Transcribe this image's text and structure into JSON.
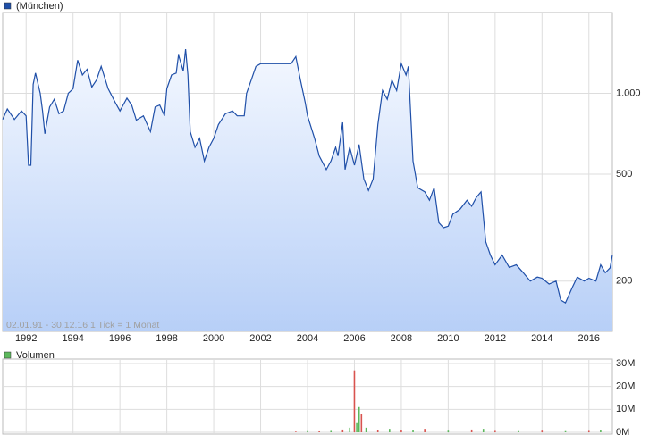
{
  "chart_data": [
    {
      "type": "area",
      "log_scale": true,
      "grid": true,
      "footnote": "02.01.91 - 30.12.16   1 Tick = 1 Monat",
      "series": [
        {
          "name": "(München)",
          "color": "#1f4fa8",
          "x": [
            1991.0,
            1991.2,
            1991.5,
            1991.8,
            1992.0,
            1992.1,
            1992.2,
            1992.3,
            1992.4,
            1992.6,
            1992.7,
            1992.8,
            1993.0,
            1993.2,
            1993.4,
            1993.6,
            1993.8,
            1994.0,
            1994.2,
            1994.4,
            1994.6,
            1994.8,
            1995.0,
            1995.2,
            1995.5,
            1995.8,
            1996.0,
            1996.3,
            1996.5,
            1996.7,
            1997.0,
            1997.3,
            1997.5,
            1997.7,
            1997.9,
            1998.0,
            1998.2,
            1998.4,
            1998.5,
            1998.7,
            1998.8,
            1998.9,
            1999.0,
            1999.2,
            1999.4,
            1999.6,
            1999.8,
            2000.0,
            2000.2,
            2000.5,
            2000.8,
            2001.0,
            2001.3,
            2001.4,
            2001.6,
            2001.8,
            2002.0,
            2002.5,
            2003.0,
            2003.3,
            2003.5,
            2003.7,
            2003.9,
            2004.0,
            2004.3,
            2004.5,
            2004.8,
            2005.0,
            2005.2,
            2005.3,
            2005.5,
            2005.6,
            2005.8,
            2006.0,
            2006.2,
            2006.4,
            2006.6,
            2006.8,
            2007.0,
            2007.2,
            2007.4,
            2007.6,
            2007.8,
            2008.0,
            2008.2,
            2008.3,
            2008.5,
            2008.7,
            2009.0,
            2009.2,
            2009.4,
            2009.6,
            2009.8,
            2010.0,
            2010.2,
            2010.5,
            2010.8,
            2011.0,
            2011.2,
            2011.4,
            2011.6,
            2011.8,
            2012.0,
            2012.3,
            2012.6,
            2012.9,
            2013.2,
            2013.5,
            2013.8,
            2014.0,
            2014.3,
            2014.6,
            2014.8,
            2015.0,
            2015.3,
            2015.5,
            2015.8,
            2016.0,
            2016.3,
            2016.5,
            2016.7,
            2016.9,
            2017.0
          ],
          "values": [
            800,
            875,
            800,
            860,
            825,
            540,
            540,
            1080,
            1190,
            1000,
            860,
            707,
            890,
            950,
            840,
            860,
            1000,
            1040,
            1330,
            1170,
            1230,
            1055,
            1120,
            1260,
            1040,
            925,
            860,
            960,
            905,
            795,
            825,
            720,
            890,
            905,
            825,
            1040,
            1170,
            1190,
            1390,
            1210,
            1460,
            1170,
            720,
            630,
            680,
            560,
            630,
            680,
            765,
            840,
            860,
            825,
            825,
            1000,
            1120,
            1260,
            1290,
            1290,
            1290,
            1290,
            1370,
            1120,
            925,
            825,
            680,
            585,
            520,
            560,
            630,
            585,
            780,
            520,
            630,
            540,
            645,
            480,
            435,
            480,
            765,
            1025,
            950,
            1120,
            1025,
            1290,
            1170,
            1260,
            560,
            445,
            430,
            400,
            445,
            330,
            316,
            320,
            355,
            370,
            400,
            380,
            410,
            430,
            280,
            250,
            230,
            250,
            225,
            230,
            215,
            200,
            207,
            205,
            195,
            200,
            170,
            166,
            190,
            207,
            200,
            205,
            200,
            230,
            215,
            224,
            250
          ]
        }
      ],
      "xlim": [
        1991,
        2017
      ],
      "xticks": [
        1992,
        1994,
        1996,
        1998,
        2000,
        2002,
        2004,
        2006,
        2008,
        2010,
        2012,
        2014,
        2016
      ],
      "ylim": [
        130,
        2000
      ],
      "yticks": [
        200,
        500,
        {
          "value": 1000,
          "label": "1.000"
        }
      ]
    },
    {
      "type": "bar",
      "grid": true,
      "series": [
        {
          "name": "Volumen",
          "color": "#5cb85c",
          "x": [
            2003.5,
            2004.0,
            2004.5,
            2005.0,
            2005.5,
            2005.8,
            2006.0,
            2006.1,
            2006.2,
            2006.3,
            2006.5,
            2007.0,
            2007.5,
            2008.0,
            2008.5,
            2009.0,
            2010.0,
            2011.0,
            2011.5,
            2012.0,
            2013.0,
            2014.0,
            2015.0,
            2016.0,
            2016.5
          ],
          "values": [
            0.3,
            0.5,
            0.4,
            0.6,
            1.2,
            2,
            27,
            4,
            11,
            8,
            2,
            1,
            1.5,
            1,
            0.8,
            1.5,
            0.7,
            1.2,
            1.5,
            0.6,
            0.5,
            0.7,
            0.5,
            0.6,
            0.8
          ],
          "bar_colors": [
            "#d9534f",
            "#5cb85c",
            "#d9534f",
            "#5cb85c",
            "#d9534f",
            "#5cb85c",
            "#d9534f",
            "#5cb85c",
            "#5cb85c",
            "#d9534f",
            "#5cb85c",
            "#d9534f",
            "#5cb85c",
            "#d9534f",
            "#5cb85c",
            "#d9534f",
            "#5cb85c",
            "#d9534f",
            "#5cb85c",
            "#d9534f",
            "#5cb85c",
            "#d9534f",
            "#5cb85c",
            "#d9534f",
            "#5cb85c"
          ]
        }
      ],
      "xlim": [
        1991,
        2017
      ],
      "ylim": [
        0,
        30
      ],
      "yticks": [
        {
          "value": 0,
          "label": "0M"
        },
        {
          "value": 10,
          "label": "10M"
        },
        {
          "value": 20,
          "label": "20M"
        },
        {
          "value": 30,
          "label": "30M"
        }
      ]
    }
  ]
}
